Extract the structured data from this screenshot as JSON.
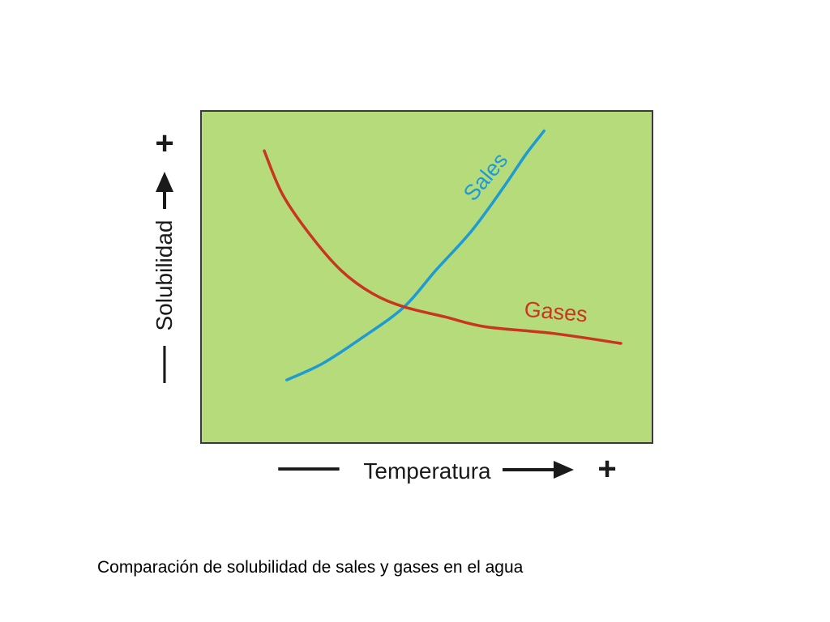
{
  "slide": {
    "caption": "Comparación de solubilidad de sales y gases en el agua"
  },
  "chart_data": {
    "type": "line",
    "title": "",
    "xlabel": "Temperatura",
    "ylabel": "Solubilidad",
    "x_markers": {
      "low": "—",
      "high": "+"
    },
    "y_markers": {
      "low": "—",
      "high": "+"
    },
    "xlim": [
      0,
      100
    ],
    "ylim": [
      0,
      100
    ],
    "grid": false,
    "legend": "labels on curves",
    "plot_background": "#b6db7b",
    "plot_border": "#3a3a3a",
    "series": [
      {
        "name": "Sales",
        "color": "#1d9bd2",
        "x": [
          19,
          27,
          36,
          45,
          52,
          60,
          67,
          72,
          76
        ],
        "y": [
          19,
          24,
          32,
          41,
          52,
          64,
          77,
          87,
          94
        ]
      },
      {
        "name": "Gases",
        "color": "#c9361f",
        "x": [
          14,
          18,
          24,
          31,
          38,
          45,
          54,
          63,
          78,
          93
        ],
        "y": [
          88,
          75,
          63,
          52,
          45,
          41,
          38,
          35,
          33,
          30
        ]
      }
    ]
  }
}
